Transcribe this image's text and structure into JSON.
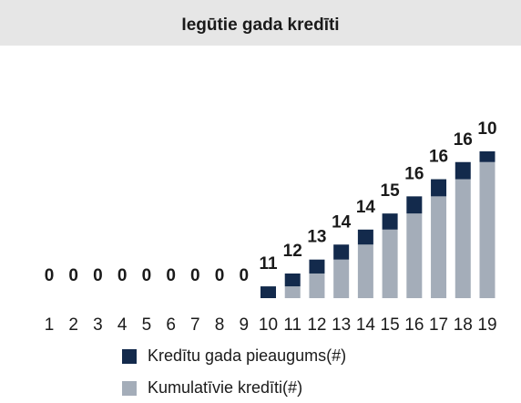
{
  "chart_data": {
    "type": "stacked_bar",
    "title": "Iegūtie gada kredīti",
    "categories": [
      "1",
      "2",
      "3",
      "4",
      "5",
      "6",
      "7",
      "8",
      "9",
      "10",
      "11",
      "12",
      "13",
      "14",
      "15",
      "16",
      "17",
      "18",
      "19"
    ],
    "series": [
      {
        "name": "Kredītu gada pieaugums(#)",
        "color": "#132a4c",
        "values": [
          0,
          0,
          0,
          0,
          0,
          0,
          0,
          0,
          0,
          11,
          12,
          13,
          14,
          14,
          15,
          16,
          16,
          16,
          10
        ]
      },
      {
        "name": "Kumulatīvie kredīti(#)",
        "color": "#a4adb9",
        "values": [
          0,
          0,
          0,
          0,
          0,
          0,
          0,
          0,
          0,
          0,
          11,
          23,
          36,
          50,
          64,
          79,
          95,
          111,
          127
        ]
      }
    ],
    "legend": "bottom"
  }
}
